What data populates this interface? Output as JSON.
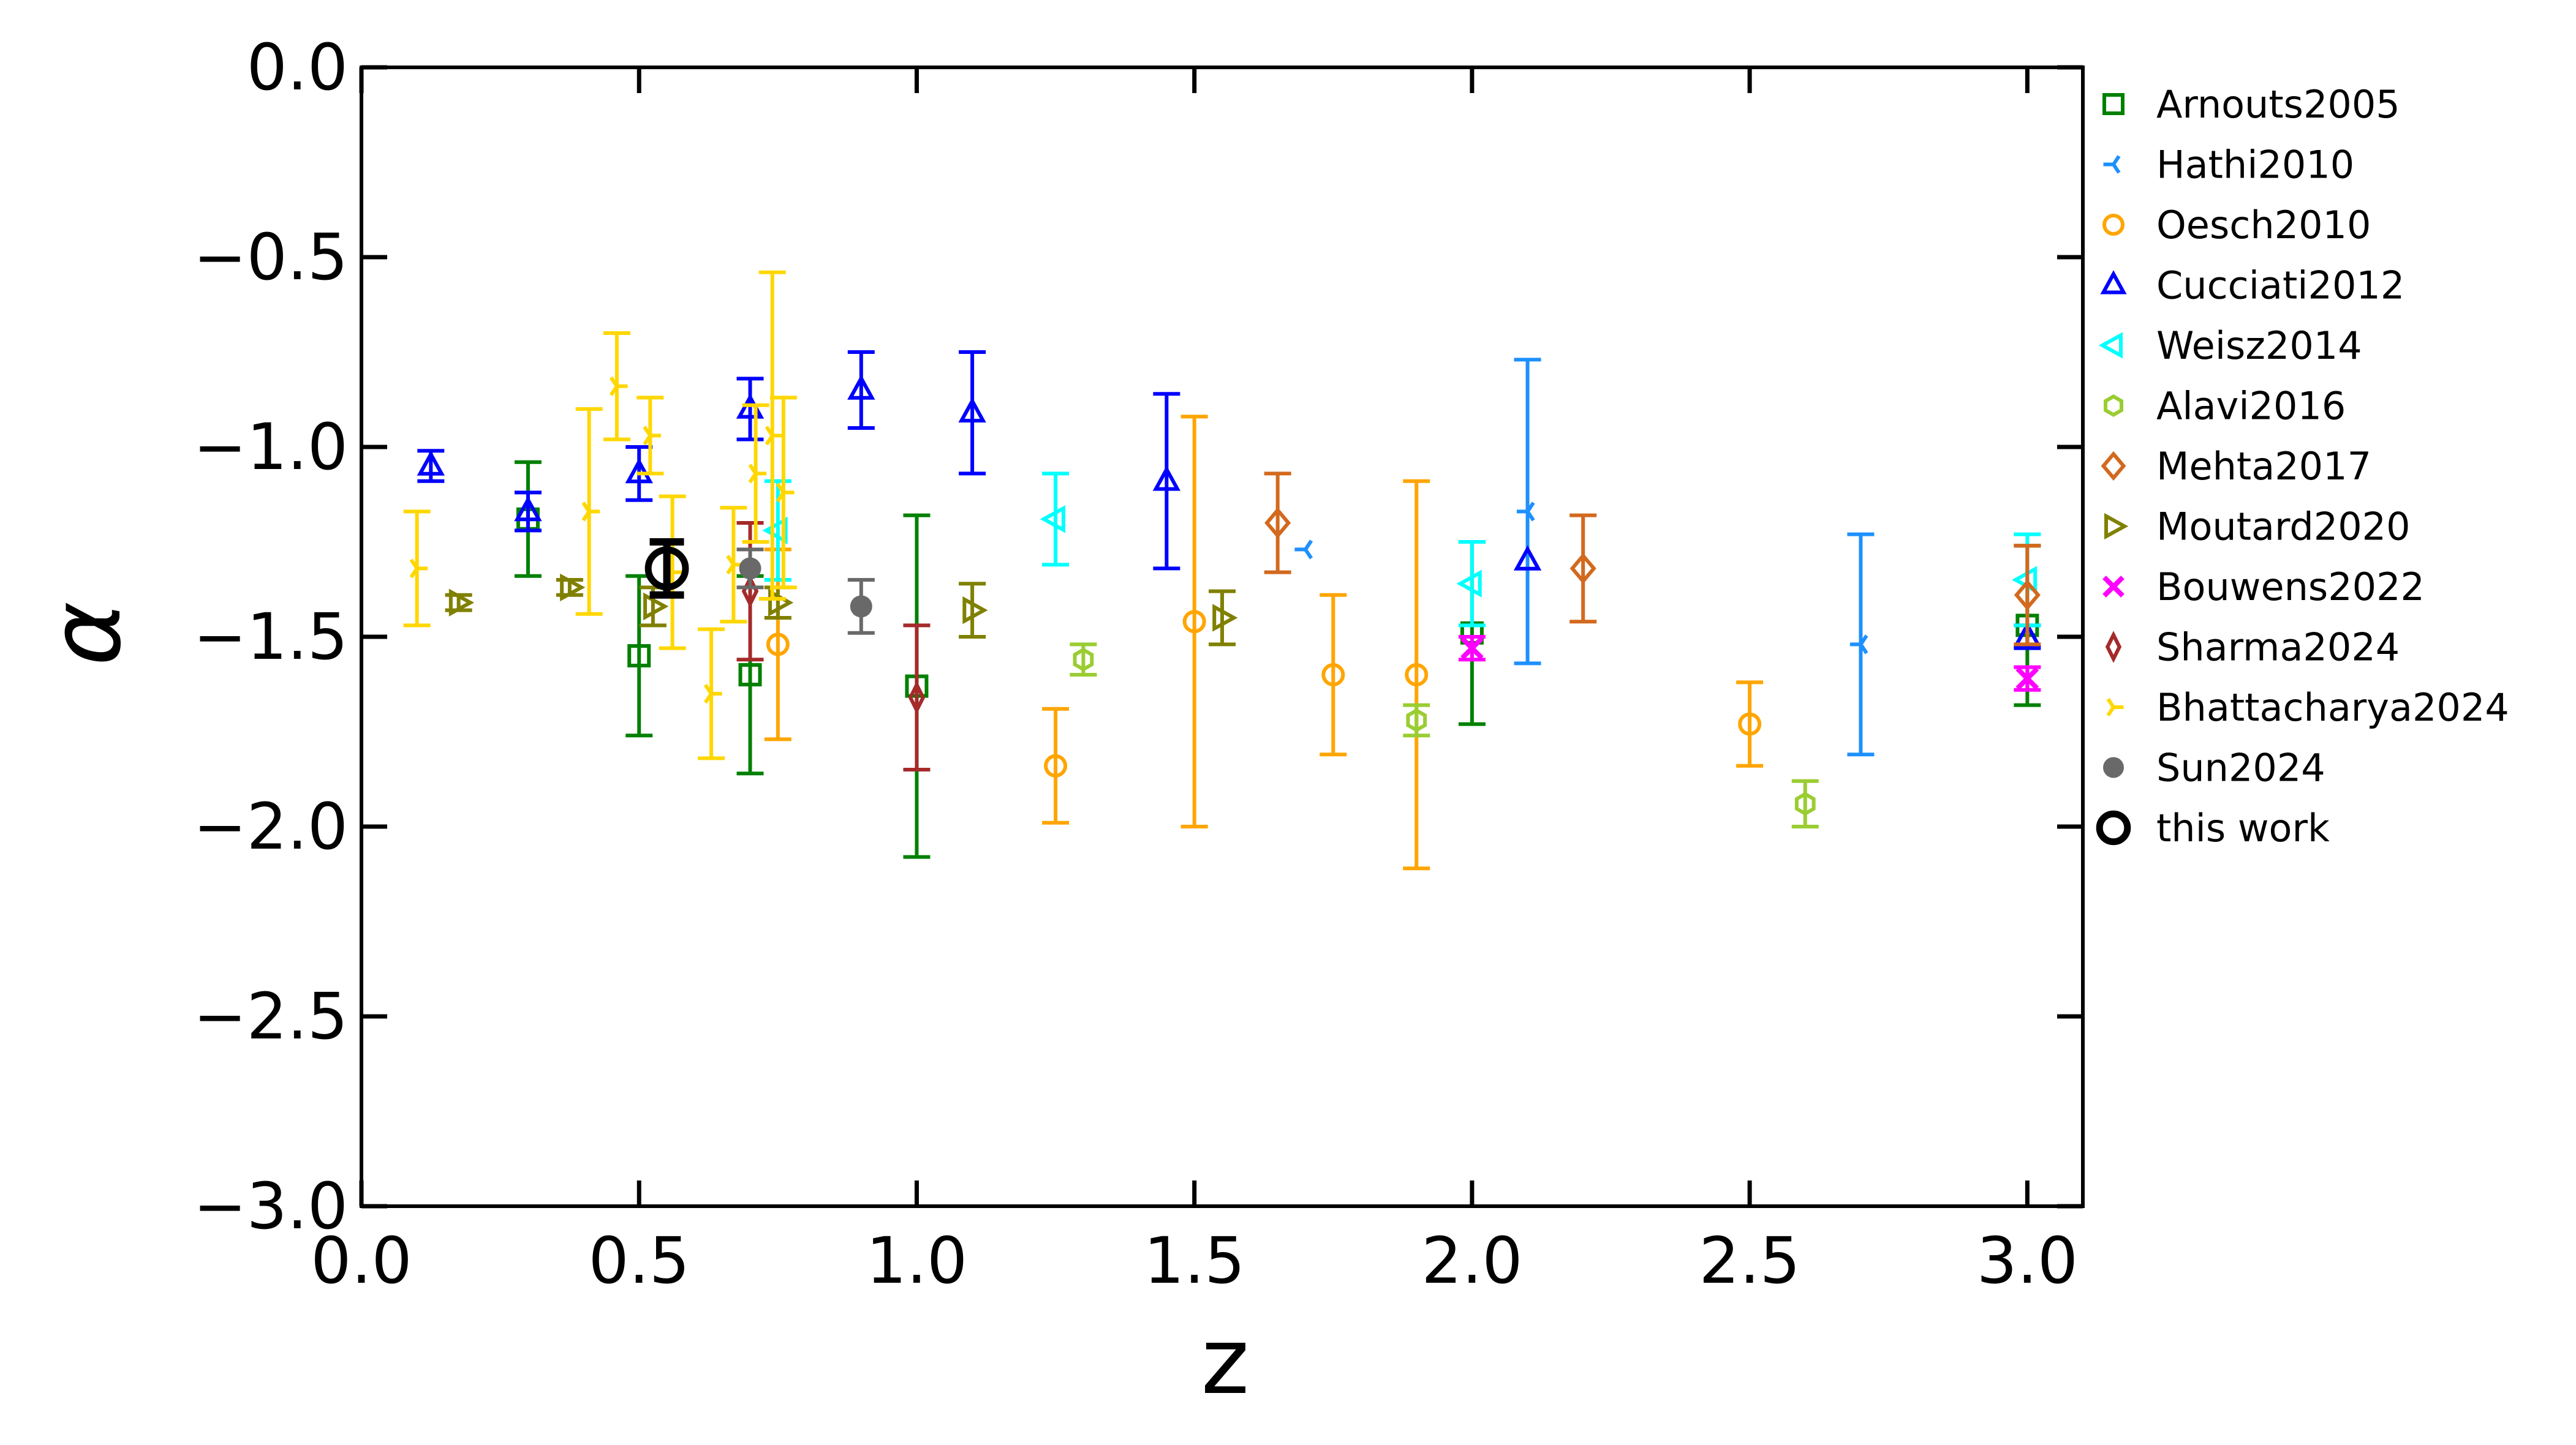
{
  "chart_data": {
    "type": "scatter",
    "xlabel": "z",
    "ylabel": "α",
    "xlim": [
      0.0,
      3.1
    ],
    "ylim": [
      -3.0,
      0.0
    ],
    "x_ticks": [
      "0.0",
      "0.5",
      "1.0",
      "1.5",
      "2.0",
      "2.5",
      "3.0"
    ],
    "y_ticks": [
      "0.0",
      "−0.5",
      "−1.0",
      "−1.5",
      "−2.0",
      "−2.5",
      "−3.0"
    ],
    "x_tick_values": [
      0.0,
      0.5,
      1.0,
      1.5,
      2.0,
      2.5,
      3.0
    ],
    "y_tick_values": [
      0.0,
      -0.5,
      -1.0,
      -1.5,
      -2.0,
      -2.5,
      -3.0
    ],
    "legend_position": "outside-right",
    "grid": false,
    "series": [
      {
        "name": "Arnouts2005",
        "color": "#008000",
        "marker": "square",
        "points": [
          {
            "x": 0.3,
            "y": -1.19,
            "lo": -1.34,
            "hi": -1.04
          },
          {
            "x": 0.5,
            "y": -1.55,
            "lo": -1.76,
            "hi": -1.34
          },
          {
            "x": 0.7,
            "y": -1.6,
            "lo": -1.86,
            "hi": -1.34
          },
          {
            "x": 1.0,
            "y": -1.63,
            "lo": -2.08,
            "hi": -1.18
          },
          {
            "x": 2.0,
            "y": -1.49,
            "lo": -1.73,
            "hi": -1.25
          },
          {
            "x": 3.0,
            "y": -1.47,
            "lo": -1.68,
            "hi": -1.26
          }
        ]
      },
      {
        "name": "Hathi2010",
        "color": "#1e90ff",
        "marker": "tri_left",
        "points": [
          {
            "x": 1.7,
            "y": -1.27,
            "lo": -1.27,
            "hi": -1.27
          },
          {
            "x": 2.1,
            "y": -1.17,
            "lo": -1.57,
            "hi": -0.77
          },
          {
            "x": 2.7,
            "y": -1.52,
            "lo": -1.81,
            "hi": -1.23
          }
        ]
      },
      {
        "name": "Oesch2010",
        "color": "#ffa500",
        "marker": "circle",
        "points": [
          {
            "x": 0.75,
            "y": -1.52,
            "lo": -1.77,
            "hi": -1.27
          },
          {
            "x": 1.25,
            "y": -1.84,
            "lo": -1.99,
            "hi": -1.69
          },
          {
            "x": 1.5,
            "y": -1.46,
            "lo": -2.0,
            "hi": -0.92
          },
          {
            "x": 1.75,
            "y": -1.6,
            "lo": -1.81,
            "hi": -1.39
          },
          {
            "x": 1.9,
            "y": -1.6,
            "lo": -2.11,
            "hi": -1.09
          },
          {
            "x": 2.5,
            "y": -1.73,
            "lo": -1.84,
            "hi": -1.62
          }
        ]
      },
      {
        "name": "Cucciati2012",
        "color": "#0000ff",
        "marker": "triangle_up",
        "points": [
          {
            "x": 0.125,
            "y": -1.05,
            "lo": -1.09,
            "hi": -1.01
          },
          {
            "x": 0.3,
            "y": -1.17,
            "lo": -1.22,
            "hi": -1.12
          },
          {
            "x": 0.5,
            "y": -1.07,
            "lo": -1.14,
            "hi": -1.0
          },
          {
            "x": 0.7,
            "y": -0.9,
            "lo": -0.98,
            "hi": -0.82
          },
          {
            "x": 0.9,
            "y": -0.85,
            "lo": -0.95,
            "hi": -0.75
          },
          {
            "x": 1.1,
            "y": -0.91,
            "lo": -1.07,
            "hi": -0.75
          },
          {
            "x": 1.45,
            "y": -1.09,
            "lo": -1.32,
            "hi": -0.86
          },
          {
            "x": 2.1,
            "y": -1.3,
            "lo": -1.3,
            "hi": -1.3
          },
          {
            "x": 3.0,
            "y": -1.5,
            "lo": -1.53,
            "hi": -1.47
          }
        ]
      },
      {
        "name": "Weisz2014",
        "color": "#00ffff",
        "marker": "triangle_left",
        "points": [
          {
            "x": 0.75,
            "y": -1.22,
            "lo": -1.35,
            "hi": -1.09
          },
          {
            "x": 1.25,
            "y": -1.19,
            "lo": -1.31,
            "hi": -1.07
          },
          {
            "x": 2.0,
            "y": -1.36,
            "lo": -1.47,
            "hi": -1.25
          },
          {
            "x": 3.0,
            "y": -1.35,
            "lo": -1.47,
            "hi": -1.23
          }
        ]
      },
      {
        "name": "Alavi2016",
        "color": "#9acd32",
        "marker": "hexagon",
        "points": [
          {
            "x": 1.3,
            "y": -1.56,
            "lo": -1.6,
            "hi": -1.52
          },
          {
            "x": 1.9,
            "y": -1.72,
            "lo": -1.76,
            "hi": -1.68
          },
          {
            "x": 2.6,
            "y": -1.94,
            "lo": -2.0,
            "hi": -1.88
          }
        ]
      },
      {
        "name": "Mehta2017",
        "color": "#d2691e",
        "marker": "diamond",
        "points": [
          {
            "x": 1.65,
            "y": -1.2,
            "lo": -1.33,
            "hi": -1.07
          },
          {
            "x": 2.2,
            "y": -1.32,
            "lo": -1.46,
            "hi": -1.18
          },
          {
            "x": 3.0,
            "y": -1.39,
            "lo": -1.52,
            "hi": -1.26
          }
        ]
      },
      {
        "name": "Moutard2020",
        "color": "#808000",
        "marker": "triangle_right",
        "points": [
          {
            "x": 0.175,
            "y": -1.41,
            "lo": -1.43,
            "hi": -1.39
          },
          {
            "x": 0.375,
            "y": -1.37,
            "lo": -1.39,
            "hi": -1.35
          },
          {
            "x": 0.525,
            "y": -1.42,
            "lo": -1.47,
            "hi": -1.37
          },
          {
            "x": 0.75,
            "y": -1.41,
            "lo": -1.45,
            "hi": -1.37
          },
          {
            "x": 1.1,
            "y": -1.43,
            "lo": -1.5,
            "hi": -1.36
          },
          {
            "x": 1.55,
            "y": -1.45,
            "lo": -1.52,
            "hi": -1.38
          }
        ]
      },
      {
        "name": "Bouwens2022",
        "color": "#ff00ff",
        "marker": "x",
        "points": [
          {
            "x": 2.0,
            "y": -1.53,
            "lo": -1.56,
            "hi": -1.5
          },
          {
            "x": 3.0,
            "y": -1.61,
            "lo": -1.64,
            "hi": -1.58
          }
        ]
      },
      {
        "name": "Sharma2024",
        "color": "#a52a2a",
        "marker": "thin_diamond",
        "points": [
          {
            "x": 0.7,
            "y": -1.38,
            "lo": -1.56,
            "hi": -1.2
          },
          {
            "x": 1.0,
            "y": -1.66,
            "lo": -1.85,
            "hi": -1.47
          }
        ]
      },
      {
        "name": "Bhattacharya2024",
        "color": "#ffd700",
        "marker": "tri_right",
        "points": [
          {
            "x": 0.1,
            "y": -1.32,
            "lo": -1.47,
            "hi": -1.17
          },
          {
            "x": 0.41,
            "y": -1.17,
            "lo": -1.44,
            "hi": -0.9
          },
          {
            "x": 0.46,
            "y": -0.84,
            "lo": -0.98,
            "hi": -0.7
          },
          {
            "x": 0.52,
            "y": -0.97,
            "lo": -1.07,
            "hi": -0.87
          },
          {
            "x": 0.56,
            "y": -1.33,
            "lo": -1.53,
            "hi": -1.13
          },
          {
            "x": 0.63,
            "y": -1.65,
            "lo": -1.82,
            "hi": -1.48
          },
          {
            "x": 0.67,
            "y": -1.31,
            "lo": -1.46,
            "hi": -1.16
          },
          {
            "x": 0.71,
            "y": -1.07,
            "lo": -1.25,
            "hi": -0.89
          },
          {
            "x": 0.74,
            "y": -0.97,
            "lo": -1.4,
            "hi": -0.54
          },
          {
            "x": 0.76,
            "y": -1.12,
            "lo": -1.37,
            "hi": -0.87
          }
        ]
      },
      {
        "name": "Sun2024",
        "color": "#696969",
        "marker": "filled_circle",
        "points": [
          {
            "x": 0.7,
            "y": -1.32,
            "lo": -1.37,
            "hi": -1.27
          },
          {
            "x": 0.9,
            "y": -1.42,
            "lo": -1.49,
            "hi": -1.35
          }
        ]
      },
      {
        "name": "this work",
        "color": "#000000",
        "marker": "big_circle",
        "points": [
          {
            "x": 0.55,
            "y": -1.32,
            "lo": -1.39,
            "hi": -1.25
          }
        ]
      }
    ]
  }
}
